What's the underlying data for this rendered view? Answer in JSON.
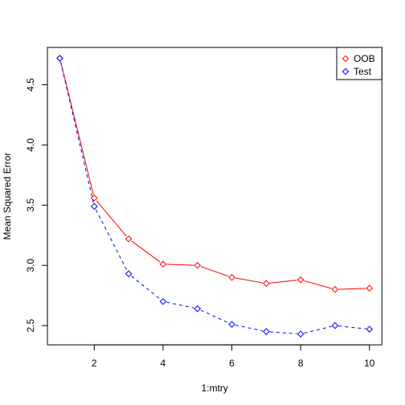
{
  "chart_data": {
    "type": "line",
    "xlabel": "1:mtry",
    "ylabel": "Mean Squared Error",
    "xlim": [
      0.64,
      10.36
    ],
    "ylim": [
      2.34,
      4.81
    ],
    "x_ticks": [
      2,
      4,
      6,
      8,
      10
    ],
    "y_ticks": [
      2.5,
      3.0,
      3.5,
      4.0,
      4.5
    ],
    "x_tick_labels": [
      "2",
      "4",
      "6",
      "8",
      "10"
    ],
    "y_tick_labels": [
      "2.5",
      "3.0",
      "3.5",
      "4.0",
      "4.5"
    ],
    "grid": false,
    "legend_position": "top-right",
    "x": [
      1,
      2,
      3,
      4,
      5,
      6,
      7,
      8,
      9,
      10
    ],
    "series": [
      {
        "name": "OOB",
        "color": "#ff0000",
        "line_style": "solid",
        "marker": "diamond",
        "values": [
          4.72,
          3.56,
          3.22,
          3.01,
          3.0,
          2.9,
          2.85,
          2.88,
          2.8,
          2.81
        ]
      },
      {
        "name": "Test",
        "color": "#0000ff",
        "line_style": "dashed",
        "marker": "diamond",
        "values": [
          4.72,
          3.49,
          2.93,
          2.7,
          2.64,
          2.51,
          2.45,
          2.43,
          2.5,
          2.47
        ]
      }
    ]
  }
}
